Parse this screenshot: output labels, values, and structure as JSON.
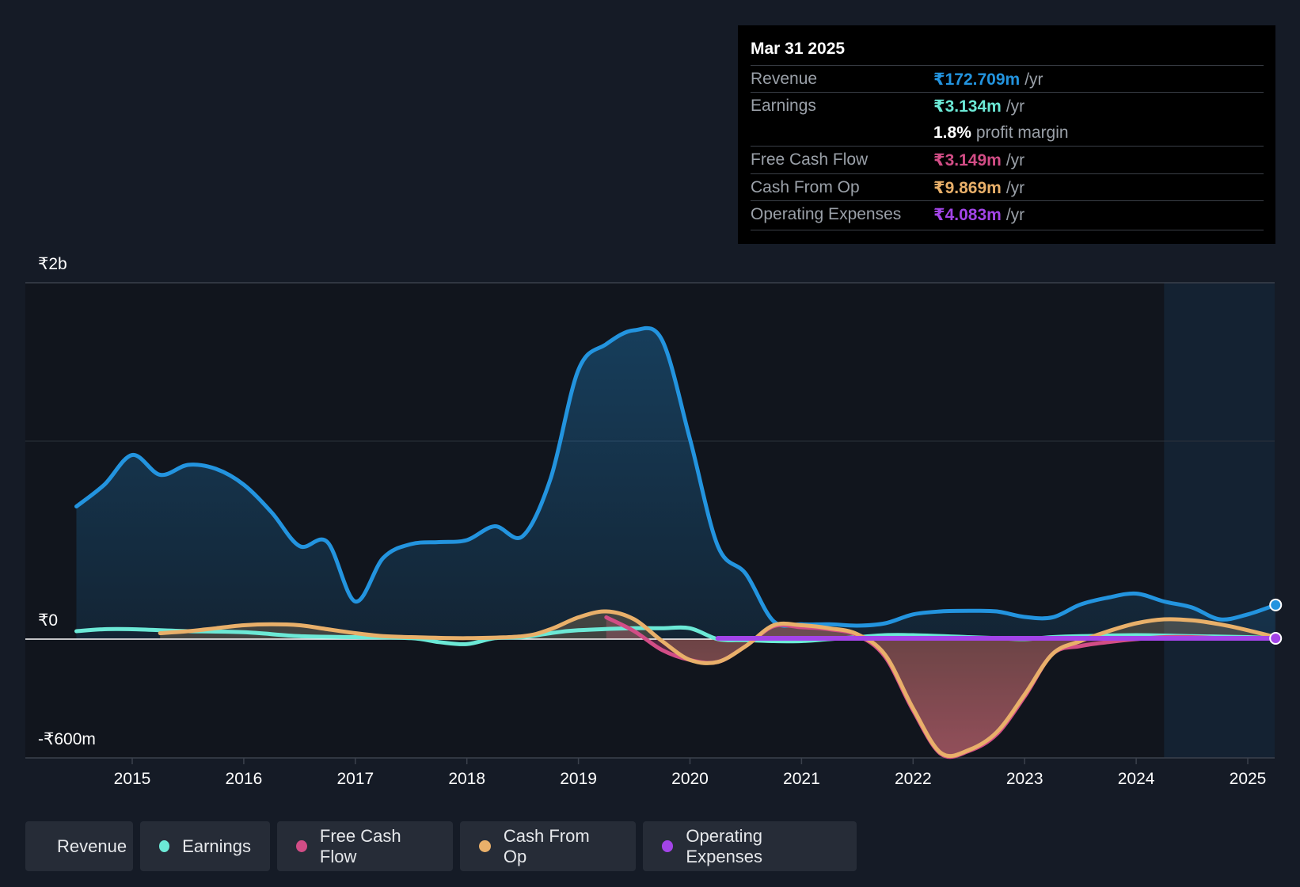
{
  "tooltip": {
    "date": "Mar 31 2025",
    "rows": {
      "revenue": {
        "label": "Revenue",
        "value": "₹172.709m",
        "unit": "/yr",
        "color": "#2394df"
      },
      "earnings": {
        "label": "Earnings",
        "value": "₹3.134m",
        "unit": "/yr",
        "color": "#6ce9d6"
      },
      "margin": {
        "value": "1.8%",
        "text": "profit margin"
      },
      "fcf": {
        "label": "Free Cash Flow",
        "value": "₹3.149m",
        "unit": "/yr",
        "color": "#d24d86"
      },
      "cfo": {
        "label": "Cash From Op",
        "value": "₹9.869m",
        "unit": "/yr",
        "color": "#e9b06a"
      },
      "opex": {
        "label": "Operating Expenses",
        "value": "₹4.083m",
        "unit": "/yr",
        "color": "#a344e8"
      }
    }
  },
  "legend": [
    {
      "label": "Revenue",
      "color": "#2394df"
    },
    {
      "label": "Earnings",
      "color": "#6ce9d6"
    },
    {
      "label": "Free Cash Flow",
      "color": "#d24d86"
    },
    {
      "label": "Cash From Op",
      "color": "#e9b06a"
    },
    {
      "label": "Operating Expenses",
      "color": "#a344e8"
    }
  ],
  "chart_data": {
    "type": "line",
    "title": "",
    "xlabel": "",
    "ylabel": "",
    "y_tick_labels": {
      "top": "₹2b",
      "zero": "₹0",
      "bottom": "-₹600m"
    },
    "ylim": [
      -600,
      1800
    ],
    "xlim": [
      2014.5,
      2025.25
    ],
    "x_ticks": [
      2015,
      2016,
      2017,
      2018,
      2019,
      2020,
      2021,
      2022,
      2023,
      2024,
      2025
    ],
    "forecast_start": 2024.25,
    "series": [
      {
        "name": "Revenue",
        "color": "#2394df",
        "filled": true,
        "points": [
          [
            2014.5,
            670
          ],
          [
            2014.75,
            780
          ],
          [
            2015.0,
            930
          ],
          [
            2015.25,
            830
          ],
          [
            2015.5,
            880
          ],
          [
            2015.75,
            860
          ],
          [
            2016.0,
            780
          ],
          [
            2016.25,
            640
          ],
          [
            2016.5,
            470
          ],
          [
            2016.75,
            490
          ],
          [
            2017.0,
            190
          ],
          [
            2017.25,
            410
          ],
          [
            2017.5,
            480
          ],
          [
            2017.75,
            490
          ],
          [
            2018.0,
            500
          ],
          [
            2018.25,
            570
          ],
          [
            2018.5,
            520
          ],
          [
            2018.75,
            810
          ],
          [
            2019.0,
            1360
          ],
          [
            2019.25,
            1490
          ],
          [
            2019.5,
            1560
          ],
          [
            2019.75,
            1510
          ],
          [
            2020.0,
            1010
          ],
          [
            2020.25,
            470
          ],
          [
            2020.5,
            330
          ],
          [
            2020.75,
            90
          ],
          [
            2021.0,
            75
          ],
          [
            2021.25,
            75
          ],
          [
            2021.5,
            68
          ],
          [
            2021.75,
            80
          ],
          [
            2022.0,
            125
          ],
          [
            2022.25,
            140
          ],
          [
            2022.5,
            143
          ],
          [
            2022.75,
            140
          ],
          [
            2023.0,
            112
          ],
          [
            2023.25,
            110
          ],
          [
            2023.5,
            175
          ],
          [
            2023.75,
            210
          ],
          [
            2024.0,
            230
          ],
          [
            2024.25,
            190
          ],
          [
            2024.5,
            160
          ],
          [
            2024.75,
            100
          ],
          [
            2025.0,
            125
          ],
          [
            2025.25,
            172.7
          ]
        ]
      },
      {
        "name": "Earnings",
        "color": "#6ce9d6",
        "filled": false,
        "points": [
          [
            2014.5,
            40
          ],
          [
            2014.75,
            50
          ],
          [
            2015.0,
            50
          ],
          [
            2015.5,
            40
          ],
          [
            2016.0,
            35
          ],
          [
            2016.5,
            15
          ],
          [
            2017.0,
            10
          ],
          [
            2017.5,
            5
          ],
          [
            2017.75,
            -15
          ],
          [
            2018.0,
            -25
          ],
          [
            2018.25,
            5
          ],
          [
            2018.5,
            10
          ],
          [
            2018.75,
            30
          ],
          [
            2019.0,
            45
          ],
          [
            2019.5,
            55
          ],
          [
            2019.75,
            55
          ],
          [
            2020.0,
            55
          ],
          [
            2020.25,
            0
          ],
          [
            2020.5,
            -5
          ],
          [
            2020.75,
            -10
          ],
          [
            2021.0,
            -10
          ],
          [
            2021.25,
            0
          ],
          [
            2021.5,
            10
          ],
          [
            2021.75,
            20
          ],
          [
            2022.0,
            20
          ],
          [
            2022.5,
            10
          ],
          [
            2022.75,
            5
          ],
          [
            2023.0,
            0
          ],
          [
            2023.25,
            10
          ],
          [
            2023.5,
            15
          ],
          [
            2024.0,
            20
          ],
          [
            2024.5,
            15
          ],
          [
            2025.0,
            10
          ],
          [
            2025.25,
            3.1
          ]
        ]
      },
      {
        "name": "Free Cash Flow",
        "color": "#d24d86",
        "filled": true,
        "points": [
          [
            2019.25,
            110
          ],
          [
            2019.5,
            40
          ],
          [
            2019.75,
            -55
          ],
          [
            2020.0,
            -105
          ],
          [
            2020.25,
            -115
          ],
          [
            2020.5,
            -35
          ],
          [
            2020.75,
            65
          ],
          [
            2021.0,
            60
          ],
          [
            2021.25,
            50
          ],
          [
            2021.5,
            20
          ],
          [
            2021.75,
            -90
          ],
          [
            2022.0,
            -360
          ],
          [
            2022.25,
            -580
          ],
          [
            2022.5,
            -565
          ],
          [
            2022.75,
            -480
          ],
          [
            2023.0,
            -290
          ],
          [
            2023.25,
            -75
          ],
          [
            2023.5,
            -35
          ],
          [
            2023.75,
            -15
          ],
          [
            2024.0,
            0
          ],
          [
            2024.25,
            10
          ],
          [
            2024.5,
            10
          ],
          [
            2024.75,
            5
          ],
          [
            2025.0,
            5
          ],
          [
            2025.25,
            3.1
          ]
        ]
      },
      {
        "name": "Cash From Op",
        "color": "#e9b06a",
        "filled": true,
        "points": [
          [
            2015.25,
            30
          ],
          [
            2015.5,
            40
          ],
          [
            2015.75,
            55
          ],
          [
            2016.0,
            70
          ],
          [
            2016.25,
            75
          ],
          [
            2016.5,
            70
          ],
          [
            2016.75,
            50
          ],
          [
            2017.0,
            30
          ],
          [
            2017.25,
            15
          ],
          [
            2017.5,
            10
          ],
          [
            2018.0,
            5
          ],
          [
            2018.5,
            15
          ],
          [
            2018.75,
            50
          ],
          [
            2019.0,
            110
          ],
          [
            2019.25,
            140
          ],
          [
            2019.5,
            100
          ],
          [
            2019.75,
            -10
          ],
          [
            2020.0,
            -105
          ],
          [
            2020.25,
            -115
          ],
          [
            2020.5,
            -35
          ],
          [
            2020.75,
            70
          ],
          [
            2021.0,
            70
          ],
          [
            2021.25,
            55
          ],
          [
            2021.5,
            25
          ],
          [
            2021.75,
            -80
          ],
          [
            2022.0,
            -350
          ],
          [
            2022.25,
            -575
          ],
          [
            2022.5,
            -560
          ],
          [
            2022.75,
            -470
          ],
          [
            2023.0,
            -280
          ],
          [
            2023.25,
            -75
          ],
          [
            2023.5,
            -10
          ],
          [
            2023.75,
            40
          ],
          [
            2024.0,
            80
          ],
          [
            2024.25,
            100
          ],
          [
            2024.5,
            95
          ],
          [
            2024.75,
            75
          ],
          [
            2025.0,
            45
          ],
          [
            2025.25,
            9.9
          ]
        ]
      },
      {
        "name": "Operating Expenses",
        "color": "#a344e8",
        "filled": false,
        "points": [
          [
            2020.25,
            4
          ],
          [
            2021.0,
            4
          ],
          [
            2022.0,
            4
          ],
          [
            2023.0,
            4
          ],
          [
            2024.0,
            4
          ],
          [
            2025.25,
            4.1
          ]
        ]
      }
    ]
  }
}
